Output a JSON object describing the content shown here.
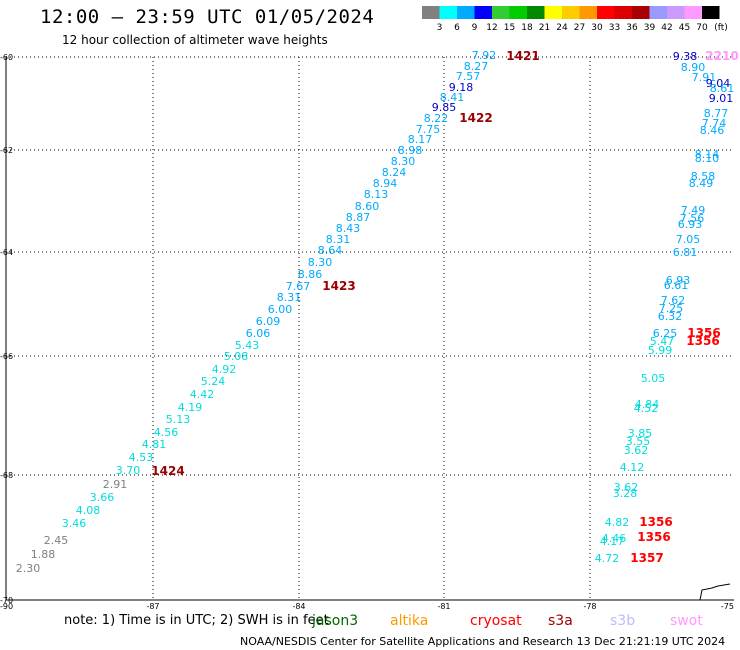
{
  "title": "12:00 — 23:59 UTC 01/05/2024",
  "subtitle": "12 hour collection of altimeter wave heights",
  "scale": {
    "labels": [
      "3",
      "6",
      "9",
      "12",
      "15",
      "18",
      "21",
      "24",
      "27",
      "30",
      "33",
      "36",
      "39",
      "42",
      "45",
      "70"
    ],
    "unit": "(ft)",
    "colors": [
      "#808080",
      "#00ffff",
      "#00aaff",
      "#0000ff",
      "#33cc33",
      "#00cc00",
      "#008800",
      "#ffff00",
      "#ffcc00",
      "#ff9900",
      "#ff0000",
      "#dd0000",
      "#aa0000",
      "#9999ff",
      "#cc99ff",
      "#ff99ff",
      "#000000"
    ]
  },
  "map": {
    "lon_ticks": [
      "-90",
      "-87",
      "-84",
      "-81",
      "-78",
      "-75"
    ],
    "lat_ticks": [
      "-60",
      "-62",
      "-64",
      "-66",
      "-68",
      "-70"
    ],
    "track1": {
      "pass_labels": [
        "1421",
        "1422",
        "1423",
        "1424"
      ],
      "values": [
        "7.92",
        "8.27",
        "7.57",
        "9.18",
        "8.41",
        "9.85",
        "8.22",
        "7.75",
        "8.17",
        "8.98",
        "8.30",
        "8.24",
        "8.94",
        "8.13",
        "8.60",
        "8.87",
        "8.43",
        "8.31",
        "8.64",
        "8.30",
        "8.86",
        "7.67",
        "8.31",
        "6.00",
        "6.09",
        "6.06",
        "5.43",
        "5.08",
        "4.92",
        "5.24",
        "4.42",
        "4.19",
        "5.13",
        "4.56",
        "4.81",
        "4.53",
        "3.70",
        "2.91",
        "3.66",
        "4.08",
        "3.46",
        "2.45",
        "1.88",
        "2.30"
      ]
    },
    "track2": {
      "pass_labels": [
        "1356",
        "1356",
        "1356",
        "1356",
        "1357",
        "2210"
      ],
      "values": [
        "9.38",
        "8.90",
        "7.91",
        "9.04",
        "8.61",
        "9.01",
        "8.77",
        "7.74",
        "8.46",
        "8.14",
        "8.10",
        "8.58",
        "8.49",
        "7.49",
        "7.56",
        "6.93",
        "7.05",
        "6.81",
        "6.93",
        "6.61",
        "7.62",
        "7.25",
        "6.32",
        "6.25",
        "5.47",
        "5.99",
        "5.05",
        "4.84",
        "4.52",
        "3.85",
        "3.55",
        "3.62",
        "4.12",
        "3.62",
        "3.28",
        "4.82",
        "4.46",
        "4.17",
        "4.72"
      ]
    }
  },
  "footer": {
    "note": "note: 1) Time is in UTC; 2) SWH is in feet",
    "satellites": [
      {
        "name": "jason3",
        "color": "#006600"
      },
      {
        "name": "altika",
        "color": "#ff9900"
      },
      {
        "name": "cryosat",
        "color": "#ff0000"
      },
      {
        "name": "s3a",
        "color": "#990000"
      },
      {
        "name": "s3b",
        "color": "#bbbbff"
      },
      {
        "name": "swot",
        "color": "#ff99ff"
      }
    ],
    "credit": "NOAA/NESDIS Center for Satellite Applications and Research    13 Dec 21:21:19 UTC 2024"
  }
}
